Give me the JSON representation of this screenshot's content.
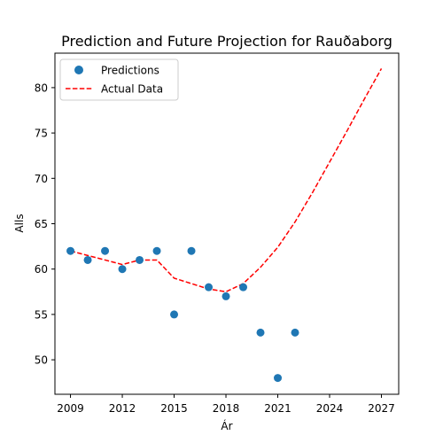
{
  "chart_data": {
    "type": "scatter",
    "title": "Prediction and Future Projection for Rauðaborg",
    "xlabel": "Ár",
    "ylabel": "Alls",
    "xlim": [
      2008.1,
      2028.0
    ],
    "ylim": [
      46.2,
      83.8
    ],
    "xticks": [
      2009,
      2012,
      2015,
      2018,
      2021,
      2024,
      2027
    ],
    "yticks": [
      50,
      55,
      60,
      65,
      70,
      75,
      80
    ],
    "grid": false,
    "legend_position": "upper left",
    "series": [
      {
        "name": "Predictions",
        "kind": "scatter",
        "color": "#1f77b4",
        "x": [
          2009,
          2010,
          2011,
          2012,
          2013,
          2014,
          2015,
          2016,
          2017,
          2018,
          2019,
          2020,
          2021,
          2022
        ],
        "y": [
          62,
          61,
          62,
          60,
          61,
          62,
          55,
          62,
          58,
          57,
          58,
          53,
          48,
          53
        ]
      },
      {
        "name": "Actual Data",
        "kind": "line",
        "style": "dashed",
        "color": "#ff0000",
        "x": [
          2009,
          2010,
          2011,
          2012,
          2013,
          2014,
          2015,
          2016,
          2017,
          2018,
          2019,
          2020,
          2021,
          2022,
          2023,
          2024,
          2025,
          2026,
          2027
        ],
        "y": [
          62,
          61.5,
          61,
          60.5,
          61,
          61,
          59,
          58.4,
          57.8,
          57.5,
          58.4,
          60.2,
          62.4,
          65.2,
          68.4,
          71.8,
          75.2,
          78.7,
          82.1
        ]
      }
    ]
  }
}
